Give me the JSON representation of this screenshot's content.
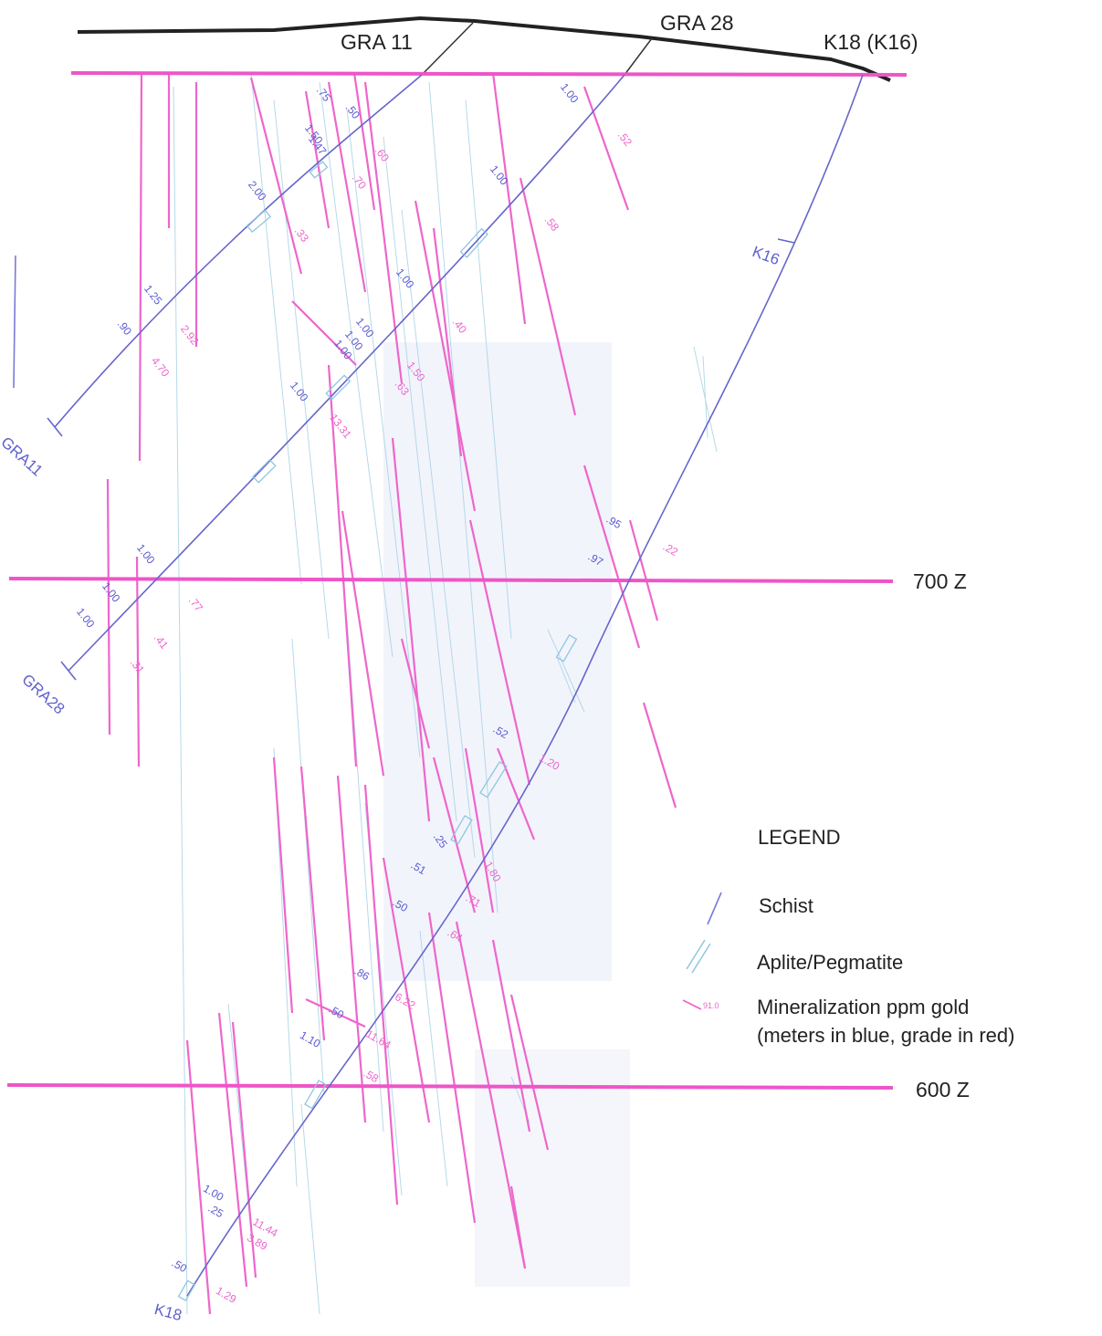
{
  "drill_holes": {
    "gra11_top": "GRA 11",
    "gra28_top": "GRA 28",
    "k18_top": "K18 (K16)",
    "gra11_end": "GRA11",
    "gra28_end": "GRA28",
    "k18_end": "K18",
    "k16_label": "K16"
  },
  "elevations": {
    "z700": "700 Z",
    "z600": "600 Z"
  },
  "legend": {
    "title": "LEGEND",
    "schist": "Schist",
    "aplite": "Aplite/Pegmatite",
    "mineralization_line1": "Mineralization ppm gold",
    "mineralization_line2": "(meters in blue, grade in red)",
    "sample_tick": "91.0"
  },
  "annotations": {
    "gra11": {
      "m1": ".75",
      "m2": ".50",
      "m3": "1.50",
      "m4": "1.47",
      "m5": "2.00",
      "m6": "1.25",
      "m7": ".90",
      "g1": ".60",
      "g2": ".70",
      "g3": ".33",
      "g4": "2.92",
      "g5": "4.70"
    },
    "gra28": {
      "m1": "1.00",
      "m2": "1.00",
      "m3": "1.00",
      "m4": "1.00",
      "m5": "1.00",
      "m6": "1.00",
      "m7": "1.00",
      "m8": "1.00",
      "m9": "1.00",
      "m10": "1.00",
      "g1": ".52",
      "g2": ".58",
      "g3": ".40",
      "g4": "1.50",
      "g5": ".63",
      "g6": ".77",
      "g7": ".41",
      "g8": ".31",
      "g9": "13.31"
    },
    "k18": {
      "m1": ".95",
      "m2": ".97",
      "m3": ".52",
      "m4": ".25",
      "m5": ".51",
      "m6": ".50",
      "m7": ".86",
      "m8": ".50",
      "m9": "1.10",
      "m10": "1.00",
      "m11": ".25",
      "m12": ".50",
      "g1": ".22",
      "g2": "1.20",
      "g3": "1.80",
      "g4": ".71",
      "g5": ".64",
      "g6": "6.22",
      "g7": "11.64",
      "g8": ".58",
      "g9": "11.44",
      "g10": "3.89",
      "g11": "1.29"
    }
  },
  "colors": {
    "surface": "#222222",
    "elevation_line": "#ee55c8",
    "drillhole": "#6666cc",
    "schist": "#7a7ad8",
    "aplite": "#8fc6e0",
    "mineralization": "#ee66cc"
  }
}
